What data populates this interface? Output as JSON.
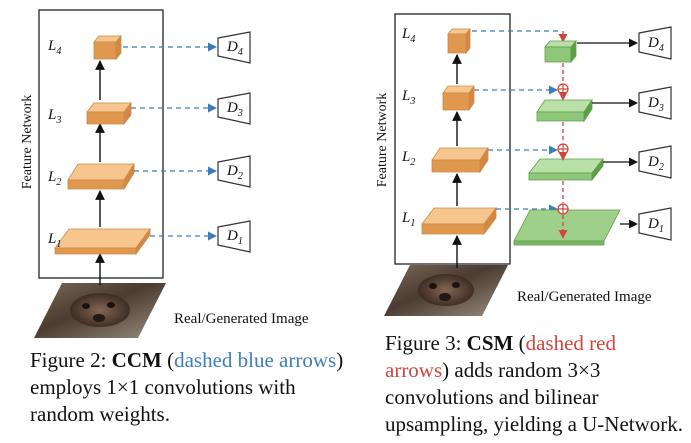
{
  "left": {
    "axis_label": "Feature Network",
    "levels": [
      {
        "name": "L",
        "sub": "4",
        "d": "D",
        "dsub": "4"
      },
      {
        "name": "L",
        "sub": "3",
        "d": "D",
        "dsub": "3"
      },
      {
        "name": "L",
        "sub": "2",
        "d": "D",
        "dsub": "2"
      },
      {
        "name": "L",
        "sub": "1",
        "d": "D",
        "dsub": "1"
      }
    ],
    "image_label": "Real/Generated Image",
    "caption": {
      "prefix": "Figure 2: ",
      "name": "CCM",
      "paren_open": " (",
      "highlight": "dashed blue arrows",
      "rest": ") employs 1×1 convolutions with random weights."
    }
  },
  "right": {
    "axis_label": "Feature Network",
    "levels": [
      {
        "name": "L",
        "sub": "4",
        "d": "D",
        "dsub": "4"
      },
      {
        "name": "L",
        "sub": "3",
        "d": "D",
        "dsub": "3"
      },
      {
        "name": "L",
        "sub": "2",
        "d": "D",
        "dsub": "2"
      },
      {
        "name": "L",
        "sub": "1",
        "d": "D",
        "dsub": "1"
      }
    ],
    "image_label": "Real/Generated Image",
    "caption": {
      "prefix": "Figure 3: ",
      "name": "CSM",
      "paren_open": " (",
      "highlight": "dashed red arrows",
      "rest": ") adds random 3×3 convolutions and bilinear upsampling, yielding a U-Network."
    }
  },
  "colors": {
    "orange_top": "#f7c68f",
    "orange_side": "#e0984e",
    "green_top": "#9ed08a",
    "green_side": "#5e9e4a",
    "blue_dash": "#3a7ebc",
    "red_dash": "#d0453c"
  }
}
